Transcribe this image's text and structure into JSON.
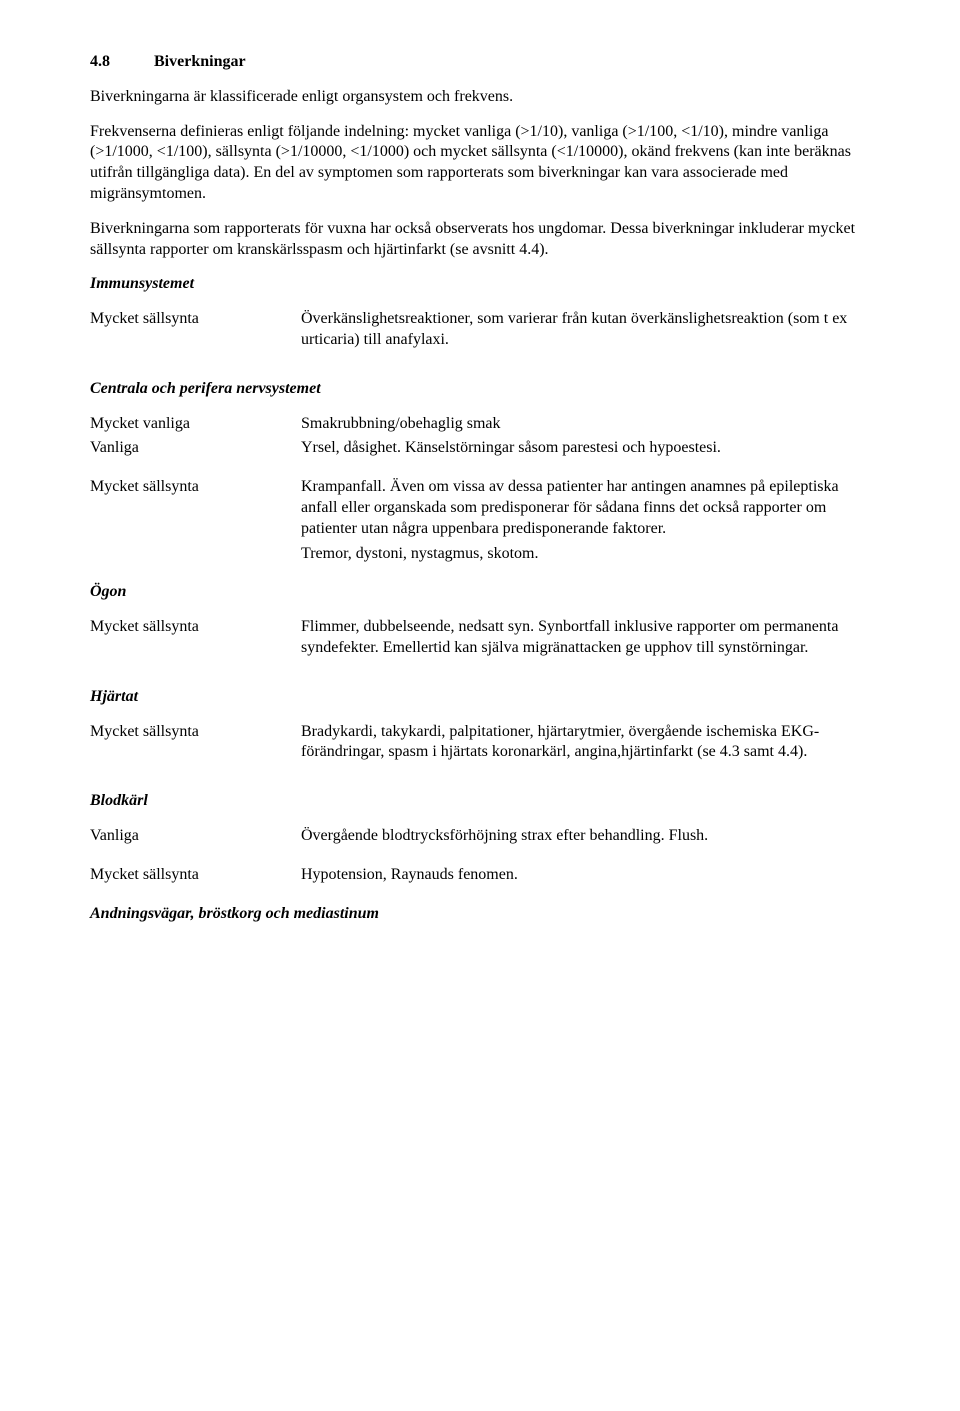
{
  "section": {
    "number": "4.8",
    "title": "Biverkningar"
  },
  "intro": {
    "p1": "Biverkningarna är klassificerade enligt organsystem och frekvens.",
    "p2": "Frekvenserna definieras enligt följande indelning: mycket vanliga (>1/10), vanliga (>1/100, <1/10), mindre vanliga (>1/1000, <1/100), sällsynta (>1/10000, <1/1000) och mycket sällsynta (<1/10000), okänd frekvens (kan inte beräknas utifrån tillgängliga data). En del av symptomen som rapporterats som biverkningar kan vara associerade med migränsymtomen.",
    "p3": "Biverkningarna som rapporterats för vuxna har också observerats hos ungdomar. Dessa biverkningar inkluderar mycket sällsynta rapporter om kranskärlsspasm och hjärtinfarkt (se avsnitt 4.4)."
  },
  "systems": {
    "immun": {
      "title": "Immunsystemet",
      "rows": [
        {
          "label": "Mycket sällsynta",
          "desc": "Överkänslighetsreaktioner, som varierar från kutan överkänslighetsreaktion (som t ex urticaria) till anafylaxi."
        }
      ]
    },
    "cns": {
      "title": "Centrala och perifera nervsystemet",
      "rows": [
        {
          "label": "Mycket vanliga",
          "desc": "Smakrubbning/obehaglig smak"
        },
        {
          "label": "Vanliga",
          "desc": "Yrsel, dåsighet. Känselstörningar såsom parestesi och hypoestesi."
        },
        {
          "label": "Mycket sällsynta",
          "desc": "Krampanfall. Även om vissa av dessa patienter har antingen anamnes på epileptiska anfall eller organskada som predisponerar för sådana finns det också rapporter om patienter utan några uppenbara predisponerande faktorer."
        },
        {
          "label": "",
          "desc": "Tremor, dystoni, nystagmus, skotom."
        }
      ]
    },
    "ogon": {
      "title": "Ögon",
      "rows": [
        {
          "label": "Mycket sällsynta",
          "desc": "Flimmer, dubbelseende, nedsatt syn. Synbortfall inklusive rapporter om permanenta syndefekter. Emellertid kan själva migränattacken ge upphov till synstörningar."
        }
      ]
    },
    "hjartat": {
      "title": "Hjärtat",
      "rows": [
        {
          "label": "Mycket sällsynta",
          "desc": "Bradykardi, takykardi, palpitationer, hjärtarytmier, övergående ischemiska EKG-förändringar, spasm i hjärtats koronarkärl, angina,hjärtinfarkt (se 4.3 samt 4.4)."
        }
      ]
    },
    "blodkarl": {
      "title": "Blodkärl",
      "rows": [
        {
          "label": "Vanliga",
          "desc": "Övergående blodtrycksförhöjning strax efter behandling. Flush."
        },
        {
          "label": "Mycket sällsynta",
          "desc": "Hypotension, Raynauds fenomen."
        }
      ]
    },
    "andning": {
      "title": "Andningsvägar, bröstkorg och mediastinum"
    }
  }
}
